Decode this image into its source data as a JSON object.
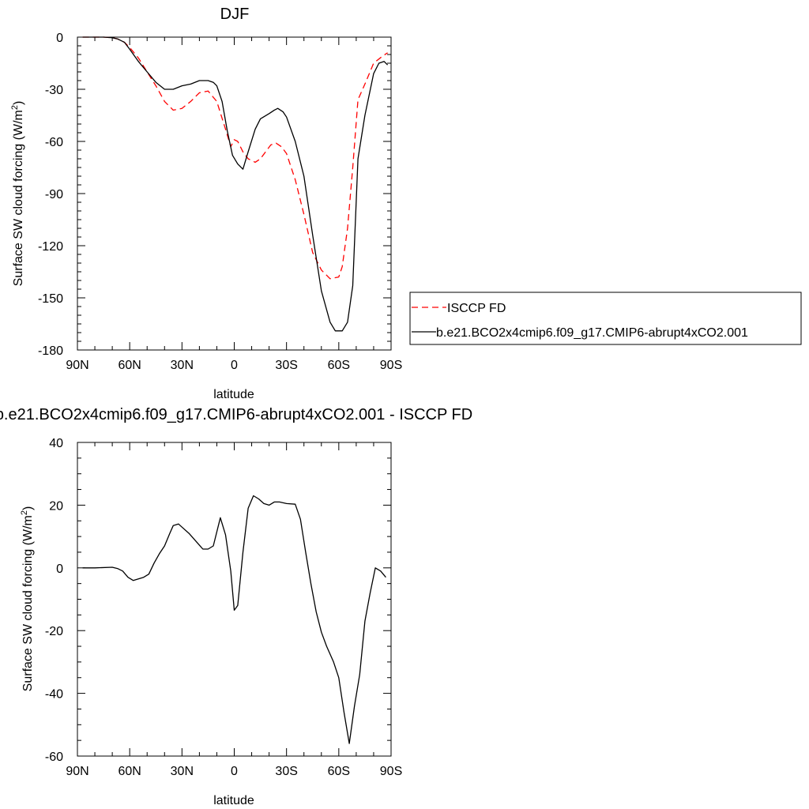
{
  "chart_data": [
    {
      "type": "line",
      "title": "DJF",
      "xlabel": "latitude",
      "ylabel": "Surface SW cloud forcing (W/m",
      "ylabel_sup": "2",
      "ylabel_close": ")",
      "xlim": [
        90,
        -90
      ],
      "ylim": [
        -180,
        0
      ],
      "xticks": [
        90,
        60,
        30,
        0,
        -30,
        -60,
        -90
      ],
      "xtick_labels": [
        "90N",
        "60N",
        "30N",
        "0",
        "30S",
        "60S",
        "90S"
      ],
      "yticks": [
        0,
        -30,
        -60,
        -90,
        -120,
        -150,
        -180
      ],
      "ytick_labels": [
        "0",
        "-30",
        "-60",
        "-90",
        "-120",
        "-150",
        "-180"
      ],
      "legend_position": "right",
      "series": [
        {
          "name": "ISCCP FD",
          "color": "#ff0000",
          "dash": "dashed",
          "x": [
            87,
            80,
            75,
            70,
            67,
            63,
            60,
            55,
            50,
            45,
            40,
            35,
            30,
            25,
            20,
            15,
            10,
            5,
            2,
            0,
            -2,
            -5,
            -8,
            -12,
            -15,
            -18,
            -21,
            -24,
            -27,
            -30,
            -35,
            -40,
            -45,
            -50,
            -55,
            -60,
            -62,
            -65,
            -68,
            -71,
            -75,
            -80,
            -85,
            -88
          ],
          "y": [
            0,
            0,
            0,
            -0.3,
            -1,
            -3,
            -6,
            -12,
            -20,
            -28,
            -37,
            -42,
            -41,
            -37,
            -32,
            -31,
            -37,
            -53,
            -63,
            -59,
            -60,
            -66,
            -70,
            -72,
            -70,
            -66,
            -62,
            -61,
            -63,
            -67,
            -82,
            -102,
            -124,
            -134,
            -139,
            -138,
            -132,
            -110,
            -75,
            -36,
            -27,
            -15,
            -11,
            -9
          ]
        },
        {
          "name": "b.e21.BCO2x4cmip6.f09_g17.CMIP6-abrupt4xCO2.001",
          "color": "#000000",
          "dash": "solid",
          "x": [
            87,
            80,
            75,
            70,
            67,
            63,
            60,
            55,
            50,
            45,
            40,
            35,
            30,
            25,
            20,
            15,
            12,
            10,
            7,
            4,
            1,
            -2,
            -5,
            -8,
            -12,
            -15,
            -20,
            -23,
            -25,
            -28,
            -30,
            -35,
            -40,
            -45,
            -50,
            -55,
            -58,
            -62,
            -65,
            -68,
            -71,
            -75,
            -80,
            -83,
            -86,
            -88
          ],
          "y": [
            0,
            0,
            0,
            -0.3,
            -1,
            -3,
            -7,
            -14,
            -20,
            -26,
            -30,
            -30,
            -28,
            -27,
            -25,
            -25,
            -26,
            -28,
            -37,
            -54,
            -68,
            -73,
            -76,
            -66,
            -53,
            -47,
            -44,
            -42,
            -41,
            -43,
            -46,
            -60,
            -80,
            -114,
            -146,
            -164,
            -169,
            -169,
            -164,
            -143,
            -70,
            -45,
            -21,
            -15,
            -14,
            -16
          ]
        }
      ]
    },
    {
      "type": "line",
      "title": "b.e21.BCO2x4cmip6.f09_g17.CMIP6-abrupt4xCO2.001 - ISCCP FD",
      "xlabel": "latitude",
      "ylabel": "Surface SW cloud forcing (W/m",
      "ylabel_sup": "2",
      "ylabel_close": ")",
      "xlim": [
        90,
        -90
      ],
      "ylim": [
        -60,
        40
      ],
      "xticks": [
        90,
        60,
        30,
        0,
        -30,
        -60,
        -90
      ],
      "xtick_labels": [
        "90N",
        "60N",
        "30N",
        "0",
        "30S",
        "60S",
        "90S"
      ],
      "yticks": [
        40,
        20,
        0,
        -20,
        -40,
        -60
      ],
      "ytick_labels": [
        "40",
        "20",
        "0",
        "-20",
        "-40",
        "-60"
      ],
      "series": [
        {
          "color": "#000000",
          "dash": "solid",
          "x": [
            87,
            80,
            70,
            67,
            64,
            61,
            58,
            55,
            52,
            49,
            46,
            43,
            40,
            37,
            35,
            32,
            30,
            26,
            22,
            18,
            15,
            12,
            8,
            5,
            2,
            0,
            -2,
            -5,
            -8,
            -11,
            -14,
            -17,
            -20,
            -23,
            -26,
            -30,
            -35,
            -38,
            -41,
            -44,
            -47,
            -50,
            -53,
            -57,
            -60,
            -63,
            -66,
            -69,
            -72,
            -75,
            -78,
            -81,
            -84,
            -87
          ],
          "y": [
            0,
            0,
            0.2,
            -0.2,
            -1,
            -3,
            -4,
            -3.5,
            -3,
            -2,
            1.5,
            4.5,
            7,
            11,
            13.5,
            14,
            13,
            11,
            8.5,
            6,
            6,
            7,
            16,
            10.5,
            -1,
            -13.5,
            -12,
            5,
            19,
            23,
            22,
            20.5,
            20,
            21,
            21,
            20.5,
            20.3,
            15.5,
            5,
            -5,
            -14,
            -20.5,
            -25,
            -30,
            -35,
            -46,
            -56,
            -44,
            -34,
            -17,
            -8,
            0,
            -1,
            -3
          ]
        }
      ]
    }
  ]
}
